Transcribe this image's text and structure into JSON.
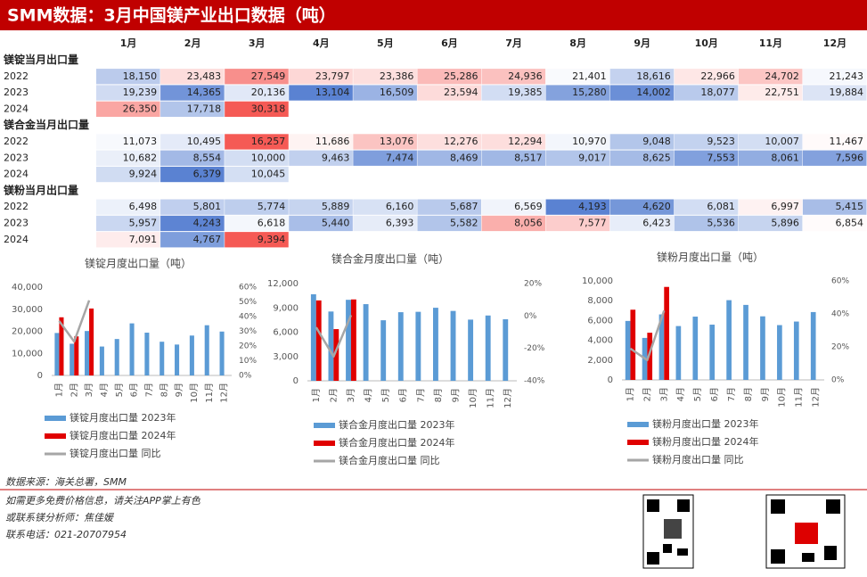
{
  "title": "SMM数据：3月中国镁产业出口数据（吨）",
  "table": {
    "headers": [
      "1月",
      "2月",
      "3月",
      "4月",
      "5月",
      "6月",
      "7月",
      "8月",
      "9月",
      "10月",
      "11月",
      "12月"
    ],
    "sections": [
      {
        "label": "镁锭当月出口量",
        "rows": [
          {
            "year": "2022",
            "cells": [
              "18,150",
              "23,483",
              "27,549",
              "23,797",
              "23,386",
              "25,286",
              "24,936",
              "21,401",
              "18,616",
              "22,966",
              "24,702",
              "21,243"
            ]
          },
          {
            "year": "2023",
            "cells": [
              "19,239",
              "14,365",
              "20,136",
              "13,104",
              "16,509",
              "23,594",
              "19,385",
              "15,280",
              "14,002",
              "18,077",
              "22,751",
              "19,884"
            ]
          },
          {
            "year": "2024",
            "cells": [
              "26,350",
              "17,718",
              "30,318"
            ]
          }
        ]
      },
      {
        "label": "镁合金当月出口量",
        "rows": [
          {
            "year": "2022",
            "cells": [
              "11,073",
              "10,495",
              "16,257",
              "11,686",
              "13,076",
              "12,276",
              "12,294",
              "10,970",
              "9,048",
              "9,523",
              "10,007",
              "11,467"
            ]
          },
          {
            "year": "2023",
            "cells": [
              "10,682",
              "8,554",
              "10,000",
              "9,463",
              "7,474",
              "8,469",
              "8,517",
              "9,017",
              "8,625",
              "7,553",
              "8,061",
              "7,596"
            ]
          },
          {
            "year": "2024",
            "cells": [
              "9,924",
              "6,379",
              "10,045"
            ]
          }
        ]
      },
      {
        "label": "镁粉当月出口量",
        "rows": [
          {
            "year": "2022",
            "cells": [
              "6,498",
              "5,801",
              "5,774",
              "5,889",
              "6,160",
              "5,687",
              "6,569",
              "4,193",
              "4,620",
              "6,081",
              "6,997",
              "5,415"
            ]
          },
          {
            "year": "2023",
            "cells": [
              "5,957",
              "4,243",
              "6,618",
              "5,440",
              "6,393",
              "5,582",
              "8,056",
              "7,577",
              "6,423",
              "5,536",
              "5,896",
              "6,854"
            ]
          },
          {
            "year": "2024",
            "cells": [
              "7,091",
              "4,767",
              "9,394"
            ]
          }
        ]
      }
    ]
  },
  "chart_data": [
    {
      "type": "bar",
      "title": "镁锭月度出口量（吨）",
      "categories": [
        "1月",
        "2月",
        "3月",
        "4月",
        "5月",
        "6月",
        "7月",
        "8月",
        "9月",
        "10月",
        "11月",
        "12月"
      ],
      "series": [
        {
          "name": "镁锭月度出口量 2023年",
          "color": "#5b9bd5",
          "values": [
            19239,
            14365,
            20136,
            13104,
            16509,
            23594,
            19385,
            15280,
            14002,
            18077,
            22751,
            19884
          ]
        },
        {
          "name": "镁锭月度出口量 2024年",
          "color": "#e00000",
          "values": [
            26350,
            17718,
            30318,
            null,
            null,
            null,
            null,
            null,
            null,
            null,
            null,
            null
          ]
        },
        {
          "name": "镁锭月度出口量 同比",
          "color": "#a6a6a6",
          "type": "line",
          "axis": "y2",
          "values": [
            37,
            23,
            51,
            null,
            null,
            null,
            null,
            null,
            null,
            null,
            null,
            null
          ]
        }
      ],
      "ylim": [
        0,
        40000
      ],
      "yticks": [
        0,
        {
          "value": 10000,
          "label": "10,000"
        },
        {
          "value": 20000,
          "label": "20,000"
        },
        {
          "value": 30000,
          "label": "30,000"
        },
        {
          "value": 40000,
          "label": "40,000"
        }
      ],
      "y2lim": [
        0,
        60
      ],
      "y2ticks": [
        {
          "value": 0,
          "label": "0%"
        },
        {
          "value": 10,
          "label": "10%"
        },
        {
          "value": 20,
          "label": "20%"
        },
        {
          "value": 30,
          "label": "30%"
        },
        {
          "value": 40,
          "label": "40%"
        },
        {
          "value": 50,
          "label": "50%"
        },
        {
          "value": 60,
          "label": "60%"
        }
      ]
    },
    {
      "type": "bar",
      "title": "镁合金月度出口量（吨）",
      "categories": [
        "1月",
        "2月",
        "3月",
        "4月",
        "5月",
        "6月",
        "7月",
        "8月",
        "9月",
        "10月",
        "11月",
        "12月"
      ],
      "series": [
        {
          "name": "镁合金月度出口量 2023年",
          "color": "#5b9bd5",
          "values": [
            10682,
            8554,
            10000,
            9463,
            7474,
            8469,
            8517,
            9017,
            8625,
            7553,
            8061,
            7596
          ]
        },
        {
          "name": "镁合金月度出口量 2024年",
          "color": "#e00000",
          "values": [
            9924,
            6379,
            10045,
            null,
            null,
            null,
            null,
            null,
            null,
            null,
            null,
            null
          ]
        },
        {
          "name": "镁合金月度出口量 同比",
          "color": "#a6a6a6",
          "type": "line",
          "axis": "y2",
          "values": [
            -7,
            -25,
            0.5,
            null,
            null,
            null,
            null,
            null,
            null,
            null,
            null,
            null
          ]
        }
      ],
      "ylim": [
        0,
        12000
      ],
      "yticks": [
        0,
        {
          "value": 3000,
          "label": "3,000"
        },
        {
          "value": 6000,
          "label": "6,000"
        },
        {
          "value": 9000,
          "label": "9,000"
        },
        {
          "value": 12000,
          "label": "12,000"
        }
      ],
      "y2lim": [
        -40,
        20
      ],
      "y2ticks": [
        {
          "value": -40,
          "label": "-40%"
        },
        {
          "value": -20,
          "label": "-20%"
        },
        {
          "value": 0,
          "label": "0%"
        },
        {
          "value": 20,
          "label": "20%"
        }
      ]
    },
    {
      "type": "bar",
      "title": "镁粉月度出口量（吨）",
      "categories": [
        "1月",
        "2月",
        "3月",
        "4月",
        "5月",
        "6月",
        "7月",
        "8月",
        "9月",
        "10月",
        "11月",
        "12月"
      ],
      "series": [
        {
          "name": "镁粉月度出口量 2023年",
          "color": "#5b9bd5",
          "values": [
            5957,
            4243,
            6618,
            5440,
            6393,
            5582,
            8056,
            7577,
            6423,
            5536,
            5896,
            6854
          ]
        },
        {
          "name": "镁粉月度出口量 2024年",
          "color": "#e00000",
          "values": [
            7091,
            4767,
            9394,
            null,
            null,
            null,
            null,
            null,
            null,
            null,
            null,
            null
          ]
        },
        {
          "name": "镁粉月度出口量 同比",
          "color": "#a6a6a6",
          "type": "line",
          "axis": "y2",
          "values": [
            19,
            12,
            42,
            null,
            null,
            null,
            null,
            null,
            null,
            null,
            null,
            null
          ]
        }
      ],
      "ylim": [
        0,
        10000
      ],
      "yticks": [
        0,
        {
          "value": 2000,
          "label": "2,000"
        },
        {
          "value": 4000,
          "label": "4,000"
        },
        {
          "value": 6000,
          "label": "6,000"
        },
        {
          "value": 8000,
          "label": "8,000"
        },
        {
          "value": 10000,
          "label": "10,000"
        }
      ],
      "y2lim": [
        0,
        60
      ],
      "y2ticks": [
        {
          "value": 0,
          "label": "0%"
        },
        {
          "value": 20,
          "label": "20%"
        },
        {
          "value": 40,
          "label": "40%"
        },
        {
          "value": 60,
          "label": "60%"
        }
      ]
    }
  ],
  "footer": {
    "source": "数据来源：海关总署，SMM",
    "lines": [
      "如需更多免费价格信息，请关注APP掌上有色",
      "或联系镁分析师：焦佳媛",
      "联系电话：021-20707954"
    ]
  }
}
